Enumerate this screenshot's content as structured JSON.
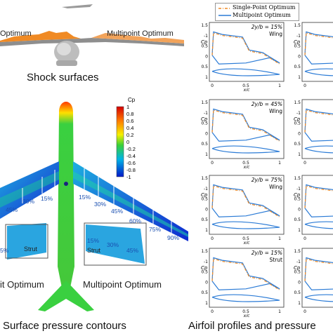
{
  "figure": {
    "left_top": {
      "label_left": "Optimum",
      "label_right": "Multipoint Optimum",
      "caption": "Shock surfaces"
    },
    "left_bottom": {
      "colorbar": {
        "title": "Cp",
        "ticks": [
          "1",
          "0.8",
          "0.6",
          "0.4",
          "0.2",
          "0",
          "-0.2",
          "-0.4",
          "-0.6",
          "-0.8",
          "-1"
        ]
      },
      "wing_stations_left": [
        "15%",
        "30%",
        "45%"
      ],
      "wing_stations_right": [
        "15%",
        "30%",
        "45%",
        "60%",
        "75%",
        "90%"
      ],
      "strut_left": {
        "label": "Strut",
        "station": "5%"
      },
      "strut_right": {
        "label": "Strut",
        "stations": [
          "15%",
          "30%",
          "45%"
        ]
      },
      "label_left": "it Optimum",
      "label_right": "Multipoint Optimum",
      "caption": "Surface pressure contours"
    },
    "right": {
      "legend": [
        {
          "name": "Single-Point Optimum",
          "color": "#f08a24",
          "style": "dash-dot"
        },
        {
          "name": "Multipoint Optimum",
          "color": "#2b7bd6",
          "style": "solid"
        }
      ],
      "panels": [
        {
          "station": "2y/b = 15%",
          "component": "Wing"
        },
        {
          "station": "2y/b = 45%",
          "component": "Wing"
        },
        {
          "station": "2y/b = 75%",
          "component": "Wing"
        },
        {
          "station": "2y/b = 15%",
          "component": "Strut"
        }
      ],
      "ylabel": "Cp",
      "xlabel": "x/c",
      "yticks": [
        "-1.5",
        "-1",
        "-0.5",
        "0",
        "0.5",
        "1"
      ],
      "xticks": [
        "0",
        "0.5",
        "1"
      ],
      "caption": "Airfoil profiles and pressure"
    }
  }
}
